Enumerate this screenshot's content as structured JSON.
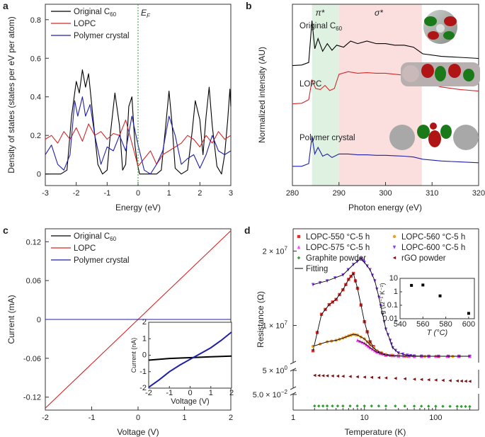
{
  "panels": {
    "a": {
      "label": "a",
      "xlabel": "Energy (eV)",
      "ylabel": "Density of states (states per eV per atom)",
      "xlim": [
        -3,
        3
      ],
      "ylim": [
        -0.06,
        0.88
      ],
      "xticks": [
        "-3",
        "-2",
        "-1",
        "0",
        "1",
        "2",
        "3"
      ],
      "yticks": [
        "0",
        "0.2",
        "0.4",
        "0.6",
        "0.8"
      ],
      "fermi_label": "E",
      "fermi_sub": "F",
      "legend": [
        {
          "text": "Original C",
          "sub": "60",
          "color": "#000000"
        },
        {
          "text": "LOPC",
          "sub": "",
          "color": "#d62728"
        },
        {
          "text": "Polymer crystal",
          "sub": "",
          "color": "#1f1fa8"
        }
      ]
    },
    "b": {
      "label": "b",
      "xlabel": "Photon energy (eV)",
      "ylabel": "Normalized intensity (AU)",
      "xlim": [
        280,
        320
      ],
      "xticks": [
        "280",
        "290",
        "300",
        "310",
        "320"
      ],
      "band_pi": "π*",
      "band_sigma": "σ*",
      "curve_labels": [
        {
          "text": "Original C",
          "sub": "60"
        },
        {
          "text": "LOPC",
          "sub": ""
        },
        {
          "text": "Polymer crystal",
          "sub": ""
        }
      ],
      "colors": {
        "pi_band": "#dff2e2",
        "sigma_band": "#fbdede"
      }
    },
    "c": {
      "label": "c",
      "xlabel": "Voltage (V)",
      "ylabel": "Current (mA)",
      "xlim": [
        -2,
        2
      ],
      "ylim": [
        -0.14,
        0.14
      ],
      "xticks": [
        "-2",
        "-1",
        "0",
        "1",
        "2"
      ],
      "yticks": [
        "-0.12",
        "-0.06",
        "0",
        "0.06",
        "0.12"
      ],
      "legend": [
        {
          "text": "Original C",
          "sub": "60",
          "color": "#000000"
        },
        {
          "text": "LOPC",
          "sub": "",
          "color": "#d62728"
        },
        {
          "text": "Polymer crystal",
          "sub": "",
          "color": "#1f1fa8"
        }
      ],
      "inset": {
        "xlabel": "Voltage (V)",
        "ylabel": "Current (nA)",
        "xticks": [
          "-2",
          "-1",
          "0",
          "1",
          "2"
        ],
        "yticks": [
          "-2",
          "-1",
          "0",
          "1",
          "2"
        ]
      }
    },
    "d": {
      "label": "d",
      "xlabel": "Temperature (K)",
      "ylabel": "Resistance (Ω)",
      "xticks": [
        "1",
        "10",
        "100"
      ],
      "yticks_upper": [
        {
          "mant": "2 × 10",
          "exp": "7"
        },
        {
          "mant": "1 × 10",
          "exp": "7"
        }
      ],
      "ytick_mid": {
        "mant": "5 × 10",
        "exp": "0"
      },
      "ytick_low": {
        "mant": "5.0 × 10",
        "exp": "−2"
      },
      "legend": [
        {
          "text": "LOPC-550 °C-5 h",
          "color": "#e03030",
          "marker": "square"
        },
        {
          "text": "LOPC-560 °C-5 h",
          "color": "#f0a020",
          "marker": "circle"
        },
        {
          "text": "LOPC-575 °C-5 h",
          "color": "#ff40ff",
          "marker": "triangle-up"
        },
        {
          "text": "LOPC-600 °C-5 h",
          "color": "#8a3cf0",
          "marker": "triangle-down"
        },
        {
          "text": "Graphite powder",
          "color": "#28a028",
          "marker": "diamond"
        },
        {
          "text": "rGO powder",
          "color": "#7a1010",
          "marker": "triangle-left"
        },
        {
          "text": "Fitting",
          "color": "#000000",
          "marker": "line"
        }
      ],
      "inset": {
        "xlabel": "T (°C)",
        "ylabel": "g (Ω⁻¹ K⁻²)",
        "xticks": [
          "540",
          "560",
          "580",
          "600"
        ],
        "yticks": [
          "10",
          "1",
          "0.1",
          "0.01"
        ]
      }
    }
  },
  "chart_data": [
    {
      "type": "line",
      "title": "",
      "xlabel": "Energy (eV)",
      "ylabel": "Density of states (states per eV per atom)",
      "xlim": [
        -3,
        3
      ],
      "ylim": [
        -0.06,
        0.88
      ],
      "series": [
        {
          "name": "Original C60",
          "color": "#000000",
          "x": [
            -3,
            -2.75,
            -2.5,
            -2.3,
            -2.15,
            -2.0,
            -1.9,
            -1.8,
            -1.7,
            -1.6,
            -1.5,
            -1.4,
            -1.3,
            -1.15,
            -1.0,
            -0.9,
            -0.75,
            -0.6,
            -0.5,
            -0.4,
            -0.3,
            -0.2,
            -0.1,
            -0.02,
            0.05,
            0.3,
            0.6,
            0.75,
            0.9,
            1.0,
            1.1,
            1.2,
            1.4,
            1.6,
            1.75,
            1.85,
            2.0,
            2.1,
            2.2,
            2.3,
            2.4,
            2.55,
            2.7,
            2.8,
            2.9,
            2.97,
            3.0
          ],
          "y": [
            0,
            0,
            0,
            0.02,
            0.3,
            0.48,
            0.42,
            0.54,
            0.45,
            0.52,
            0.36,
            0.2,
            0.05,
            0,
            0.02,
            0.2,
            0.42,
            0.25,
            0.02,
            0.05,
            0.35,
            0.4,
            0.15,
            0.05,
            0,
            0,
            0,
            0.02,
            0.26,
            0.43,
            0.26,
            0.03,
            0,
            0.02,
            0.22,
            0.38,
            0.28,
            0.1,
            0.3,
            0.45,
            0.25,
            0.04,
            0,
            0.1,
            0.28,
            0.44,
            0.35
          ]
        },
        {
          "name": "LOPC",
          "color": "#d62728",
          "x": [
            -3,
            -2.8,
            -2.6,
            -2.4,
            -2.2,
            -2.0,
            -1.8,
            -1.6,
            -1.4,
            -1.2,
            -1.0,
            -0.8,
            -0.6,
            -0.4,
            -0.2,
            0,
            0.2,
            0.4,
            0.6,
            0.8,
            1.0,
            1.2,
            1.4,
            1.6,
            1.8,
            2.0,
            2.2,
            2.4,
            2.6,
            2.8,
            3.0
          ],
          "y": [
            0.18,
            0.2,
            0.16,
            0.22,
            0.18,
            0.24,
            0.17,
            0.26,
            0.2,
            0.22,
            0.18,
            0.21,
            0.2,
            0.28,
            0.16,
            0.04,
            0.08,
            0.12,
            0.05,
            0.1,
            0.12,
            0.14,
            0.16,
            0.2,
            0.18,
            0.14,
            0.2,
            0.16,
            0.22,
            0.18,
            0.2
          ]
        },
        {
          "name": "Polymer crystal",
          "color": "#1f1fa8",
          "x": [
            -3,
            -2.8,
            -2.6,
            -2.4,
            -2.2,
            -2.05,
            -1.95,
            -1.8,
            -1.7,
            -1.55,
            -1.4,
            -1.2,
            -1.0,
            -0.8,
            -0.6,
            -0.4,
            -0.2,
            0,
            0.2,
            0.4,
            0.6,
            0.8,
            1.0,
            1.2,
            1.4,
            1.6,
            1.8,
            2.0,
            2.2,
            2.4,
            2.6,
            2.8,
            3.0
          ],
          "y": [
            0.1,
            0.15,
            0.05,
            0.02,
            0.1,
            0.38,
            0.3,
            0.4,
            0.3,
            0.36,
            0.2,
            0.05,
            0.14,
            0.12,
            0.2,
            0.12,
            0.3,
            0.15,
            0.02,
            0,
            0.05,
            0.12,
            0.3,
            0.2,
            0.05,
            0.08,
            0.1,
            0.03,
            0.1,
            0.2,
            0.12,
            0.1,
            0.12
          ]
        }
      ]
    },
    {
      "type": "line",
      "title": "",
      "xlabel": "Photon energy (eV)",
      "ylabel": "Normalized intensity (AU)",
      "xlim": [
        280,
        320
      ],
      "bands": [
        {
          "label": "π*",
          "x": [
            284.2,
            290
          ]
        },
        {
          "label": "σ*",
          "x": [
            290,
            307.8
          ]
        }
      ],
      "series": [
        {
          "name": "Original C60",
          "x": [
            280,
            282,
            283.5,
            284.2,
            284.8,
            285.5,
            286.5,
            287.5,
            288.5,
            289.5,
            291,
            292.5,
            294,
            296,
            298,
            300,
            302,
            304,
            306,
            308,
            312,
            316,
            320
          ],
          "y": [
            0.02,
            0.03,
            0.08,
            0.9,
            0.35,
            0.55,
            0.3,
            0.45,
            0.32,
            0.42,
            0.38,
            0.5,
            0.45,
            0.5,
            0.45,
            0.45,
            0.42,
            0.42,
            0.38,
            0.25,
            0.2,
            0.18,
            0.16
          ]
        },
        {
          "name": "LOPC",
          "x": [
            280,
            282,
            283.5,
            284.2,
            285,
            286,
            287,
            288,
            289,
            290,
            292,
            294,
            296,
            298,
            300,
            302,
            304,
            306,
            308,
            312,
            316,
            320
          ],
          "y": [
            0.02,
            0.03,
            0.1,
            0.48,
            0.32,
            0.3,
            0.38,
            0.28,
            0.32,
            0.6,
            0.65,
            0.62,
            0.63,
            0.62,
            0.62,
            0.6,
            0.58,
            0.55,
            0.45,
            0.35,
            0.3,
            0.27
          ]
        },
        {
          "name": "Polymer crystal",
          "x": [
            280,
            282,
            283.5,
            284.2,
            284.8,
            285.5,
            286.5,
            287.5,
            288.5,
            290,
            292,
            294,
            296,
            298,
            300,
            302,
            304,
            306,
            308,
            312,
            316,
            320
          ],
          "y": [
            0.02,
            0.02,
            0.08,
            0.7,
            0.3,
            0.45,
            0.25,
            0.3,
            0.22,
            0.3,
            0.3,
            0.28,
            0.28,
            0.27,
            0.27,
            0.26,
            0.25,
            0.23,
            0.18,
            0.14,
            0.12,
            0.1
          ]
        }
      ]
    },
    {
      "type": "line",
      "title": "",
      "xlabel": "Voltage (V)",
      "ylabel": "Current (mA)",
      "xlim": [
        -2,
        2
      ],
      "ylim": [
        -0.14,
        0.14
      ],
      "series": [
        {
          "name": "Original C60",
          "x": [
            -2,
            2
          ],
          "y": [
            0,
            0
          ]
        },
        {
          "name": "LOPC",
          "x": [
            -2,
            2
          ],
          "y": [
            -0.137,
            0.137
          ]
        },
        {
          "name": "Polymer crystal",
          "x": [
            -2,
            2
          ],
          "y": [
            0,
            0
          ]
        }
      ],
      "inset": {
        "xlabel": "Voltage (V)",
        "ylabel": "Current (nA)",
        "xlim": [
          -2,
          2
        ],
        "ylim": [
          -2,
          2
        ],
        "series": [
          {
            "name": "Original C60",
            "x": [
              -2,
              -1,
              0,
              1,
              2
            ],
            "y": [
              -0.3,
              -0.2,
              -0.15,
              -0.1,
              -0.05
            ]
          },
          {
            "name": "Polymer crystal",
            "x": [
              -2,
              -1.5,
              -1,
              -0.5,
              0,
              0.5,
              1,
              1.5,
              2
            ],
            "y": [
              -1.95,
              -1.5,
              -1.0,
              -0.6,
              -0.25,
              0.1,
              0.45,
              0.9,
              1.4
            ]
          }
        ]
      }
    },
    {
      "type": "scatter",
      "title": "",
      "xlabel": "Temperature (K)",
      "ylabel": "Resistance (Ω)",
      "xscale": "log",
      "xlim": [
        1,
        400
      ],
      "series": [
        {
          "name": "LOPC-550 °C-5 h",
          "x": [
            1.9,
            2.5,
            3.2,
            4,
            5,
            6,
            7,
            8,
            10,
            12,
            15,
            20,
            30,
            50,
            80,
            150,
            300
          ],
          "y": [
            6600000.0,
            11500000.0,
            12800000.0,
            13500000.0,
            14800000.0,
            16200000.0,
            17000000.0,
            15000000.0,
            10500000.0,
            7800000.0,
            6500000.0,
            6000000.0,
            5900000.0,
            5850000.0,
            5850000.0,
            5850000.0,
            5850000.0
          ]
        },
        {
          "name": "LOPC-560 °C-5 h",
          "x": [
            1.9,
            3,
            4,
            5,
            6,
            7,
            8,
            10,
            12,
            15,
            20,
            30,
            50,
            100,
            300
          ],
          "y": [
            7200000.0,
            7800000.0,
            8000000.0,
            8300000.0,
            8600000.0,
            8800000.0,
            8700000.0,
            8200000.0,
            7400000.0,
            6600000.0,
            6100000.0,
            5900000.0,
            5850000.0,
            5850000.0,
            5850000.0
          ]
        },
        {
          "name": "LOPC-575 °C-5 h",
          "x": [
            8,
            10,
            12,
            15,
            20,
            30,
            50,
            100,
            300
          ],
          "y": [
            8000000.0,
            7600000.0,
            7000000.0,
            6400000.0,
            6000000.0,
            5900000.0,
            5850000.0,
            5850000.0,
            5850000.0
          ]
        },
        {
          "name": "LOPC-600 °C-5 h",
          "x": [
            1.9,
            3,
            5,
            7,
            9,
            10,
            12,
            14,
            16,
            18,
            20,
            23,
            25,
            30,
            40,
            50,
            80,
            150,
            300
          ],
          "y": [
            15500000.0,
            16000000.0,
            16800000.0,
            18200000.0,
            19000000.0,
            18500000.0,
            17500000.0,
            16000000.0,
            13800000.0,
            11500000.0,
            9500000.0,
            8000000.0,
            7000000.0,
            6300000.0,
            6000000.0,
            5900000.0,
            5850000.0,
            5850000.0,
            5850000.0
          ]
        },
        {
          "name": "Graphite powder",
          "x": [
            2,
            3,
            5,
            10,
            20,
            50,
            100,
            200,
            300
          ],
          "y": [
            0.05,
            0.05,
            0.05,
            0.05,
            0.05,
            0.049,
            0.048,
            0.047,
            0.046
          ]
        },
        {
          "name": "rGO powder",
          "x": [
            2,
            3,
            5,
            10,
            20,
            50,
            100,
            200,
            300
          ],
          "y": [
            5,
            4.95,
            4.9,
            4.8,
            4.7,
            4.55,
            4.45,
            4.35,
            4.3
          ]
        }
      ],
      "inset": {
        "xlabel": "T (°C)",
        "ylabel": "g (Ω⁻¹ K⁻²)",
        "yscale": "log",
        "x": [
          550,
          560,
          575,
          600
        ],
        "y": [
          3.0,
          3.2,
          0.5,
          0.025
        ]
      }
    }
  ]
}
